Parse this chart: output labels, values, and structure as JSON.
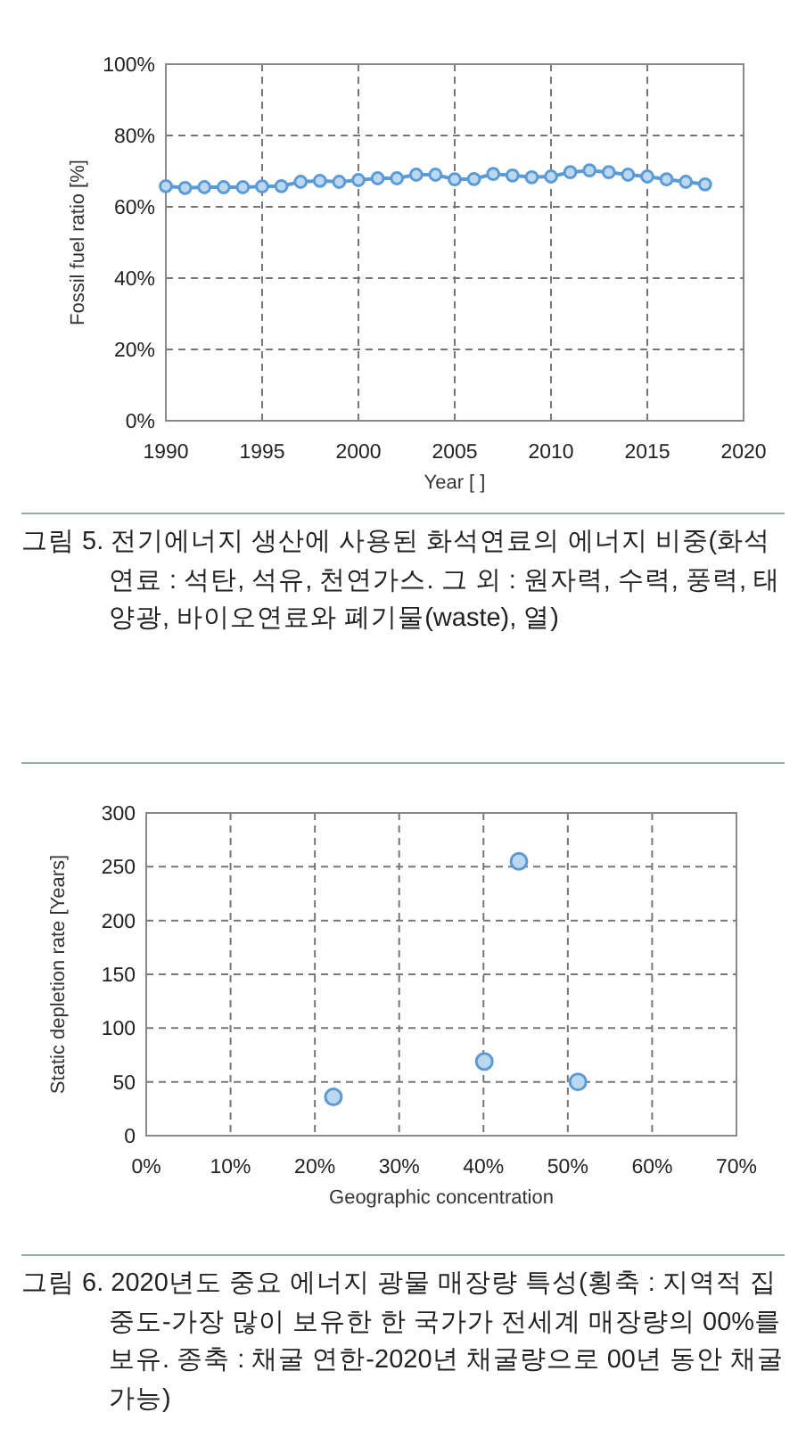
{
  "chart_data": [
    {
      "type": "line",
      "xlabel": "Year [ ]",
      "ylabel": "Fossil fuel ratio [%]",
      "x": [
        1990,
        1991,
        1992,
        1993,
        1994,
        1995,
        1996,
        1997,
        1998,
        1999,
        2000,
        2001,
        2002,
        2003,
        2004,
        2005,
        2006,
        2007,
        2008,
        2009,
        2010,
        2011,
        2012,
        2013,
        2014,
        2015,
        2016,
        2017,
        2018
      ],
      "values": [
        65.8,
        65.3,
        65.5,
        65.5,
        65.5,
        65.7,
        65.8,
        67,
        67.3,
        67,
        67.5,
        68,
        68,
        69,
        69,
        67.7,
        67.8,
        69.2,
        68.8,
        68.3,
        68.5,
        69.7,
        70.2,
        69.7,
        69,
        68.5,
        67.7,
        67,
        66.3
      ],
      "color": "#5b9bd5",
      "marker": "circle",
      "grid": true,
      "xlim": [
        1990,
        2020
      ],
      "xticks": [
        1990,
        1995,
        2000,
        2005,
        2010,
        2015,
        2020
      ],
      "ylim": [
        0,
        100
      ],
      "yticks": [
        {
          "value": 0,
          "label": "0%"
        },
        {
          "value": 20,
          "label": "20%"
        },
        {
          "value": 40,
          "label": "40%"
        },
        {
          "value": 60,
          "label": "60%"
        },
        {
          "value": 80,
          "label": "80%"
        },
        {
          "value": 100,
          "label": "100%"
        }
      ],
      "annotations": [
        "그림 5. 전기에너지 생산에 사용된 화석연료의 에너지 비중(화석연료 : 석탄, 석유, 천연가스. 그 외 : 원자력, 수력, 풍력, 태양광, 바이오연료와 폐기물(waste), 열)"
      ]
    },
    {
      "type": "scatter",
      "xlabel": "Geographic concentration",
      "ylabel": "Static depletion rate [Years]",
      "x": [
        22.2,
        40.1,
        44.2,
        51.2
      ],
      "values": [
        36,
        69,
        255,
        50
      ],
      "color": "#5b9bd5",
      "marker": "circle",
      "grid": true,
      "xlim": [
        0,
        70
      ],
      "xticks": [
        {
          "value": 0,
          "label": "0%"
        },
        {
          "value": 10,
          "label": "10%"
        },
        {
          "value": 20,
          "label": "20%"
        },
        {
          "value": 30,
          "label": "30%"
        },
        {
          "value": 40,
          "label": "40%"
        },
        {
          "value": 50,
          "label": "50%"
        },
        {
          "value": 60,
          "label": "60%"
        },
        {
          "value": 70,
          "label": "70%"
        }
      ],
      "ylim": [
        0,
        300
      ],
      "yticks": [
        0,
        50,
        100,
        150,
        200,
        250,
        300
      ],
      "annotations": [
        "그림 6. 2020년도 중요 에너지 광물 매장량 특성(횡축 : 지역적 집중도-가장 많이 보유한 한 국가가 전세계 매장량의 00%를 보유. 종축 : 채굴 연한-2020년 채굴량으로 00년 동안 채굴 가능)"
      ]
    }
  ]
}
